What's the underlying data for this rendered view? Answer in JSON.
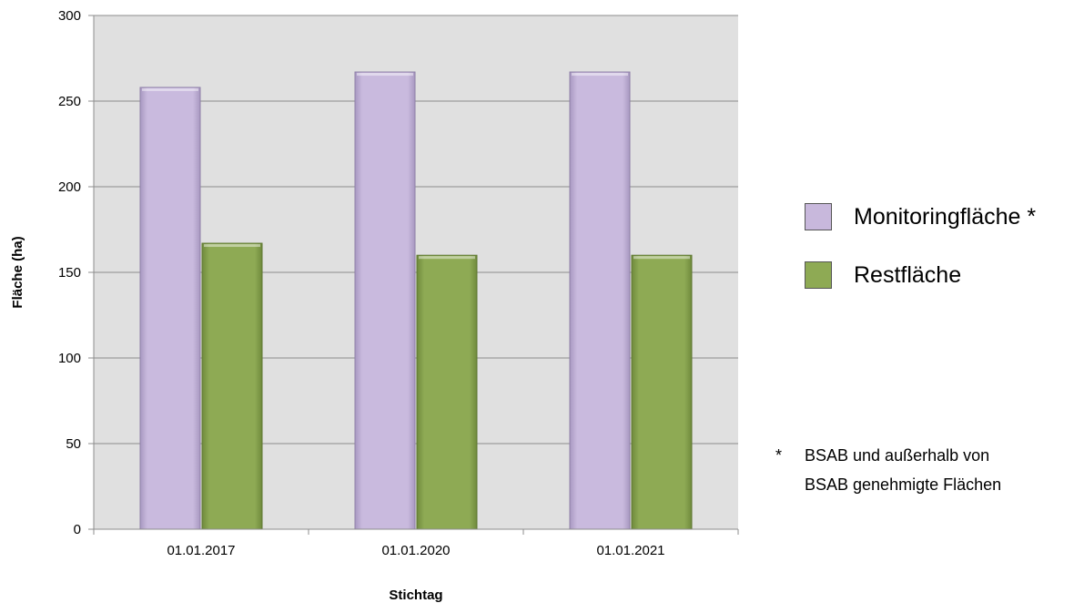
{
  "chart_data": {
    "type": "bar",
    "categories": [
      "01.01.2017",
      "01.01.2020",
      "01.01.2021"
    ],
    "series": [
      {
        "name": "Monitoringfläche *",
        "values": [
          258,
          267,
          267
        ],
        "color": "#c8b8dc"
      },
      {
        "name": "Restfläche",
        "values": [
          167,
          160,
          160
        ],
        "color": "#8eaa54"
      }
    ],
    "xlabel": "Stichtag",
    "ylabel": "Fläche (ha)",
    "ylim": [
      0,
      300
    ],
    "yticks": [
      "0",
      "50",
      "100",
      "150",
      "200",
      "250",
      "300"
    ],
    "grid": true,
    "legend_position": "right",
    "plot_background": "#e0e0e0"
  },
  "footnote": {
    "marker": "*",
    "text": "BSAB und außerhalb von\nBSAB genehmigte Flächen"
  }
}
